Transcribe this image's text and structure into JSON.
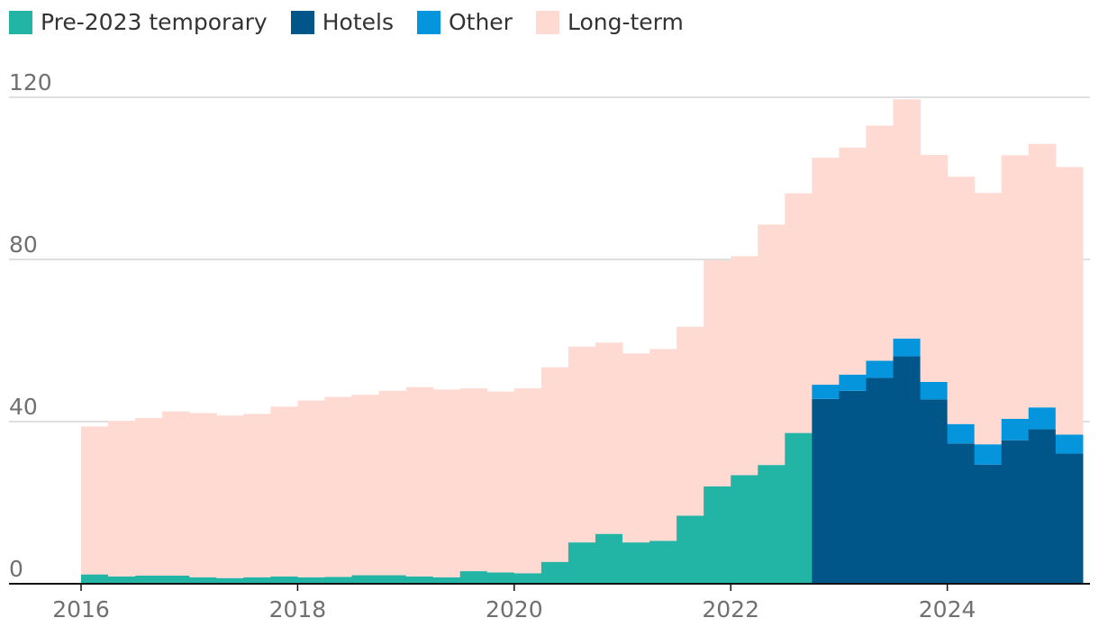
{
  "colors": {
    "pre2023": "#22b5a6",
    "hotels": "#005689",
    "other": "#0595dd",
    "longterm": "#ffdad3",
    "grid": "#bfbfbf",
    "axis": "#121212",
    "text": "#707070"
  },
  "chart_data": {
    "type": "area",
    "stacked": true,
    "ylim": [
      0,
      120
    ],
    "yticks": [
      0,
      40,
      80,
      120
    ],
    "xlim": [
      2015.75,
      2025.4
    ],
    "xticks": [
      2016,
      2018,
      2020,
      2022,
      2024
    ],
    "x": [
      2016.0,
      2016.25,
      2016.5,
      2016.75,
      2017.0,
      2017.25,
      2017.5,
      2017.75,
      2018.0,
      2018.25,
      2018.5,
      2018.75,
      2019.0,
      2019.25,
      2019.5,
      2019.75,
      2020.0,
      2020.25,
      2020.5,
      2020.75,
      2021.0,
      2021.25,
      2021.5,
      2021.75,
      2022.0,
      2022.25,
      2022.5,
      2022.75,
      2023.0,
      2023.25,
      2023.5,
      2023.75,
      2024.0,
      2024.25,
      2024.5,
      2024.75,
      2025.0
    ],
    "series": [
      {
        "name": "Pre-2023 temporary",
        "color_key": "pre2023",
        "values": [
          2.3,
          1.8,
          2.0,
          2.0,
          1.6,
          1.4,
          1.6,
          1.8,
          1.6,
          1.7,
          2.1,
          2.1,
          1.8,
          1.6,
          3.1,
          2.8,
          2.6,
          5.4,
          10.2,
          12.3,
          10.2,
          10.6,
          16.8,
          24.0,
          26.8,
          29.3,
          37.2,
          0,
          0,
          0,
          0,
          0,
          0,
          0,
          0,
          0,
          0
        ]
      },
      {
        "name": "Hotels",
        "color_key": "hotels",
        "values": [
          0,
          0,
          0,
          0,
          0,
          0,
          0,
          0,
          0,
          0,
          0,
          0,
          0,
          0,
          0,
          0,
          0,
          0,
          0,
          0,
          0,
          0,
          0,
          0,
          0,
          0,
          0,
          45.6,
          47.6,
          50.8,
          56.1,
          45.5,
          34.6,
          29.4,
          35.4,
          38.1,
          32.1
        ],
        "fill_from": 0
      },
      {
        "name": "Other",
        "color_key": "other",
        "values": [
          0,
          0,
          0,
          0,
          0,
          0,
          0,
          0,
          0,
          0,
          0,
          0,
          0,
          0,
          0,
          0,
          0,
          0,
          0,
          0,
          0,
          0,
          0,
          0,
          0,
          0,
          0,
          3.5,
          4.0,
          4.2,
          4.4,
          4.3,
          4.8,
          5.0,
          5.3,
          5.4,
          4.7
        ]
      },
      {
        "name": "Long-term",
        "color_key": "longterm",
        "values": [
          36.5,
          38.4,
          38.9,
          40.5,
          40.5,
          40.1,
          40.3,
          41.9,
          43.6,
          44.4,
          44.5,
          45.5,
          46.7,
          46.3,
          45.1,
          44.6,
          45.6,
          48.0,
          48.3,
          47.2,
          46.6,
          47.3,
          46.6,
          55.8,
          54.0,
          59.3,
          59.1,
          56.0,
          56.0,
          58.0,
          59.0,
          56.0,
          61.0,
          62.0,
          65.0,
          65.0,
          66.0
        ]
      }
    ],
    "legend_position": "top-left",
    "grid": true
  },
  "legend": [
    {
      "label": "Pre-2023 temporary",
      "color_key": "pre2023"
    },
    {
      "label": "Hotels",
      "color_key": "hotels"
    },
    {
      "label": "Other",
      "color_key": "other"
    },
    {
      "label": "Long-term",
      "color_key": "longterm"
    }
  ]
}
